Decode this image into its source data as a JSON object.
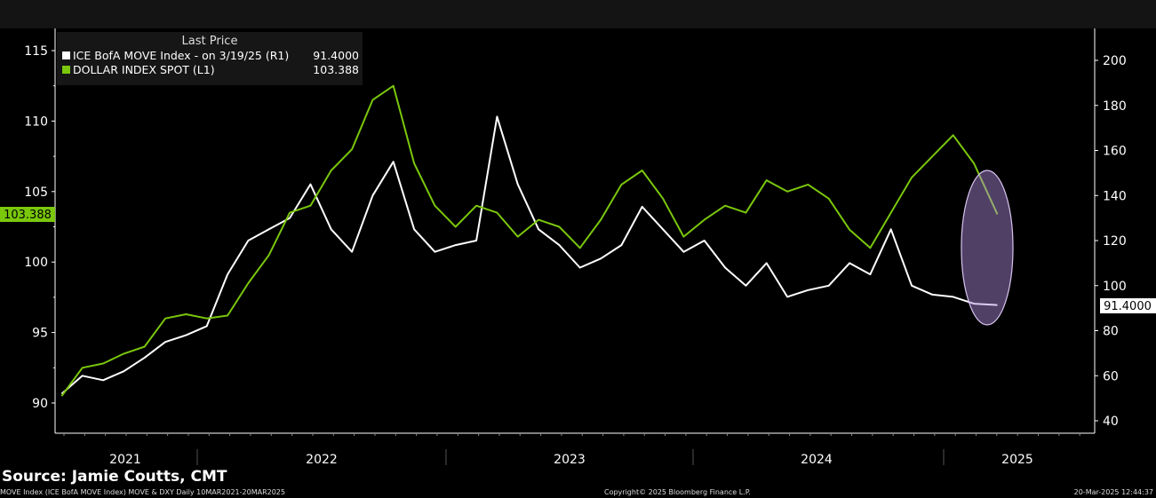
{
  "chart_data": {
    "type": "line",
    "legend_title": "Last Price",
    "legend_placement": "top-left",
    "x_ticks": [
      "2021",
      "2022",
      "2023",
      "2024",
      "2025"
    ],
    "left_axis": {
      "ticks": [
        90,
        95,
        100,
        105,
        110,
        115
      ],
      "range": [
        88.5,
        116.5
      ]
    },
    "right_axis": {
      "ticks": [
        40,
        60,
        80,
        100,
        120,
        140,
        160,
        180,
        200
      ],
      "range": [
        35,
        213
      ]
    },
    "grid": false,
    "series": [
      {
        "name": "ICE BofA MOVE Index -  on 3/19/25  (R1)",
        "last": "91.4000",
        "axis": "right",
        "color": "#ffffff",
        "dates": [
          "2021-06",
          "2021-07",
          "2021-08",
          "2021-09",
          "2021-10",
          "2021-11",
          "2021-12",
          "2022-01",
          "2022-02",
          "2022-03",
          "2022-04",
          "2022-05",
          "2022-06",
          "2022-07",
          "2022-08",
          "2022-09",
          "2022-10",
          "2022-11",
          "2022-12",
          "2023-01",
          "2023-02",
          "2023-03",
          "2023-04",
          "2023-05",
          "2023-06",
          "2023-07",
          "2023-08",
          "2023-09",
          "2023-10",
          "2023-11",
          "2023-12",
          "2024-01",
          "2024-02",
          "2024-03",
          "2024-04",
          "2024-05",
          "2024-06",
          "2024-07",
          "2024-08",
          "2024-09",
          "2024-10",
          "2024-11",
          "2024-12",
          "2025-01",
          "2025-02",
          "2025-03-19"
        ],
        "values": [
          52,
          60,
          58,
          62,
          68,
          75,
          78,
          82,
          105,
          120,
          125,
          130,
          145,
          125,
          115,
          140,
          155,
          125,
          115,
          118,
          120,
          175,
          145,
          125,
          118,
          108,
          112,
          118,
          135,
          125,
          115,
          120,
          108,
          100,
          110,
          95,
          98,
          100,
          110,
          105,
          125,
          100,
          96,
          95,
          92,
          91.4
        ]
      },
      {
        "name": "DOLLAR INDEX SPOT  (L1)",
        "last": "103.388",
        "axis": "left",
        "color": "#7ac70c",
        "dates": [
          "2021-06",
          "2021-07",
          "2021-08",
          "2021-09",
          "2021-10",
          "2021-11",
          "2021-12",
          "2022-01",
          "2022-02",
          "2022-03",
          "2022-04",
          "2022-05",
          "2022-06",
          "2022-07",
          "2022-08",
          "2022-09",
          "2022-10",
          "2022-11",
          "2022-12",
          "2023-01",
          "2023-02",
          "2023-03",
          "2023-04",
          "2023-05",
          "2023-06",
          "2023-07",
          "2023-08",
          "2023-09",
          "2023-10",
          "2023-11",
          "2023-12",
          "2024-01",
          "2024-02",
          "2024-03",
          "2024-04",
          "2024-05",
          "2024-06",
          "2024-07",
          "2024-08",
          "2024-09",
          "2024-10",
          "2024-11",
          "2024-12",
          "2025-01",
          "2025-02",
          "2025-03-19"
        ],
        "values": [
          90.5,
          92.5,
          92.8,
          93.5,
          94,
          96,
          96.3,
          96,
          96.2,
          98.5,
          100.5,
          103.5,
          104,
          106.5,
          108,
          111.5,
          112.5,
          107,
          104,
          102.5,
          104,
          103.5,
          101.8,
          103,
          102.5,
          101,
          103,
          105.5,
          106.5,
          104.5,
          101.8,
          103,
          104,
          103.5,
          105.8,
          105,
          105.5,
          104.5,
          102.3,
          101,
          103.5,
          106,
          107.5,
          109,
          107,
          103.388
        ]
      }
    ],
    "annotation": {
      "shape": "ellipse",
      "color": "#b48ee0"
    },
    "left_label": "103.388",
    "right_label": "91.4000"
  },
  "source": "Source: Jamie Coutts, CMT",
  "footer": {
    "left": "MOVE Index (ICE BofA MOVE Index) MOVE & DXY  Daily 10MAR2021-20MAR2025",
    "center": "Copyright© 2025 Bloomberg Finance L.P.",
    "right": "20-Mar-2025 12:44:37"
  }
}
